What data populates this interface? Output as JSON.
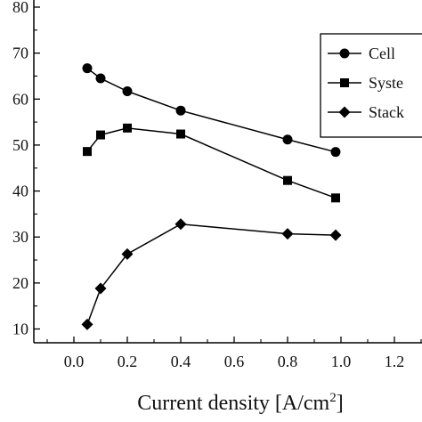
{
  "chart_data": {
    "type": "line",
    "title": "",
    "xlabel": "Current density [A/cm",
    "xlabel_sup": "2",
    "xlabel_close": "]",
    "ylabel": "",
    "xlim": [
      -0.15,
      1.35
    ],
    "ylim": [
      7,
      80
    ],
    "x_ticks": [
      "0.0",
      "0.2",
      "0.4",
      "0.6",
      "0.8",
      "1.0",
      "1.2"
    ],
    "x_tick_values": [
      0.0,
      0.2,
      0.4,
      0.6,
      0.8,
      1.0,
      1.2
    ],
    "y_ticks": [
      "10",
      "20",
      "30",
      "40",
      "50",
      "60",
      "70",
      "80"
    ],
    "y_tick_values": [
      10,
      20,
      30,
      40,
      50,
      60,
      70,
      80
    ],
    "grid": false,
    "legend_position": "top-right",
    "series": [
      {
        "name": "Cell",
        "marker": "circle",
        "x": [
          0.05,
          0.1,
          0.2,
          0.4,
          0.8,
          0.98
        ],
        "y": [
          66.7,
          64.5,
          61.7,
          57.5,
          51.2,
          48.5
        ]
      },
      {
        "name": "Syste",
        "marker": "square",
        "x": [
          0.05,
          0.1,
          0.2,
          0.4,
          0.8,
          0.98
        ],
        "y": [
          48.6,
          52.2,
          53.7,
          52.4,
          42.3,
          38.5
        ]
      },
      {
        "name": "Stack",
        "marker": "diamond",
        "x": [
          0.05,
          0.1,
          0.2,
          0.4,
          0.8,
          0.98
        ],
        "y": [
          11.0,
          18.8,
          26.3,
          32.8,
          30.7,
          30.4
        ]
      }
    ]
  }
}
